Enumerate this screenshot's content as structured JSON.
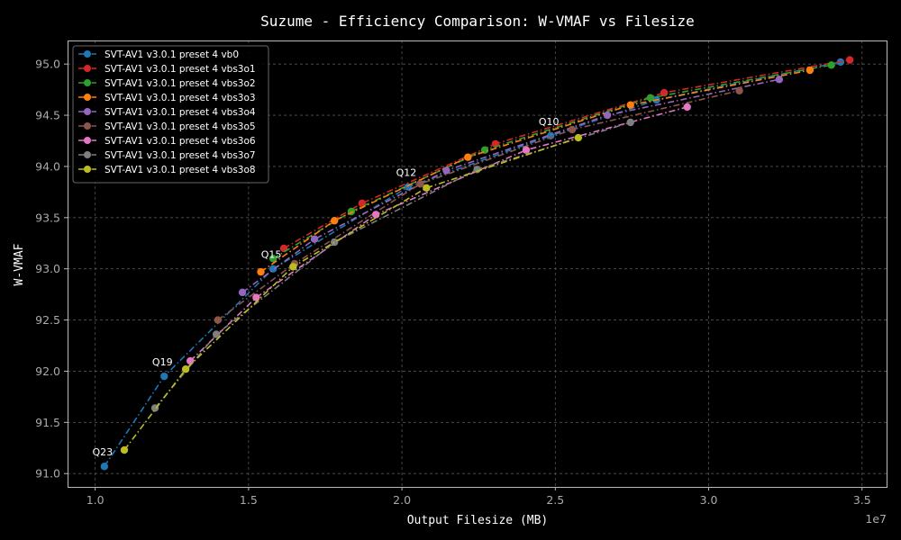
{
  "chart_data": {
    "type": "line",
    "title": "Suzume - Efficiency Comparison: W-VMAF vs Filesize",
    "xlabel": "Output Filesize (MB)",
    "ylabel": "W-VMAF",
    "x_scale_label": "1e7",
    "xlim": [
      9100000,
      35800000
    ],
    "ylim": [
      90.87,
      95.23
    ],
    "x_ticks": [
      10000000,
      15000000,
      20000000,
      25000000,
      30000000,
      35000000
    ],
    "x_tick_labels": [
      "1.0",
      "1.5",
      "2.0",
      "2.5",
      "3.0",
      "3.5"
    ],
    "y_ticks": [
      91.0,
      91.5,
      92.0,
      92.5,
      93.0,
      93.5,
      94.0,
      94.5,
      95.0
    ],
    "y_tick_labels": [
      "91.0",
      "91.5",
      "92.0",
      "92.5",
      "93.0",
      "93.5",
      "94.0",
      "94.5",
      "95.0"
    ],
    "grid": true,
    "legend_position": "top-left",
    "series": [
      {
        "name": "SVT-AV1 v3.0.1 preset 4 vb0",
        "color": "#1f77b4",
        "x": [
          10300000,
          12250000,
          15800000,
          20200000,
          24850000,
          28300000,
          34300000
        ],
        "y": [
          91.07,
          91.95,
          93.0,
          93.8,
          94.3,
          94.65,
          95.02
        ]
      },
      {
        "name": "SVT-AV1 v3.0.1 preset 4 vbs3o1",
        "color": "#d62728",
        "x": [
          16150000,
          18700000,
          23050000,
          28550000,
          34600000
        ],
        "y": [
          93.2,
          93.64,
          94.22,
          94.72,
          95.04
        ]
      },
      {
        "name": "SVT-AV1 v3.0.1 preset 4 vbs3o2",
        "color": "#2ca02c",
        "x": [
          15800000,
          18350000,
          22700000,
          28100000,
          34000000
        ],
        "y": [
          93.1,
          93.56,
          94.16,
          94.67,
          94.99
        ]
      },
      {
        "name": "SVT-AV1 v3.0.1 preset 4 vbs3o3",
        "color": "#ff7f0e",
        "x": [
          15400000,
          17800000,
          22150000,
          27450000,
          33300000
        ],
        "y": [
          92.97,
          93.47,
          94.09,
          94.6,
          94.94
        ]
      },
      {
        "name": "SVT-AV1 v3.0.1 preset 4 vbs3o4",
        "color": "#9467bd",
        "x": [
          14800000,
          17150000,
          21450000,
          26700000,
          32300000
        ],
        "y": [
          92.77,
          93.29,
          93.96,
          94.5,
          94.85
        ]
      },
      {
        "name": "SVT-AV1 v3.0.1 preset 4 vbs3o5",
        "color": "#8c564b",
        "x": [
          14000000,
          16500000,
          20600000,
          25550000,
          31000000
        ],
        "y": [
          92.5,
          93.05,
          93.83,
          94.36,
          94.74
        ]
      },
      {
        "name": "SVT-AV1 v3.0.1 preset 4 vbs3o6",
        "color": "#e377c2",
        "x": [
          13100000,
          15250000,
          19150000,
          24050000,
          29300000
        ],
        "y": [
          92.1,
          92.72,
          93.53,
          94.16,
          94.58
        ]
      },
      {
        "name": "SVT-AV1 v3.0.1 preset 4 vbs3o7",
        "color": "#7f7f7f",
        "x": [
          11950000,
          13950000,
          17800000,
          22450000,
          27450000
        ],
        "y": [
          91.64,
          92.36,
          93.26,
          93.97,
          94.43
        ]
      },
      {
        "name": "SVT-AV1 v3.0.1 preset 4 vbs3o8",
        "color": "#bcbd22",
        "x": [
          10950000,
          12950000,
          16450000,
          20800000,
          25750000
        ],
        "y": [
          91.23,
          92.02,
          93.02,
          93.79,
          94.28
        ]
      }
    ],
    "annotations": [
      {
        "text": "Q23",
        "x": 10300000,
        "y": 91.07
      },
      {
        "text": "Q19",
        "x": 12250000,
        "y": 91.95
      },
      {
        "text": "Q15",
        "x": 15800000,
        "y": 93.0
      },
      {
        "text": "Q12",
        "x": 20200000,
        "y": 93.8
      },
      {
        "text": "Q10",
        "x": 24850000,
        "y": 94.3
      }
    ]
  }
}
